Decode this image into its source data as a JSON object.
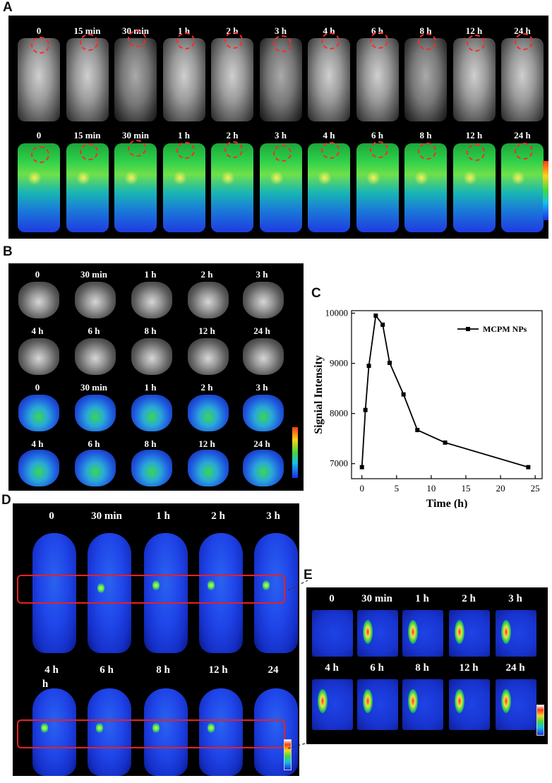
{
  "panels": {
    "A": {
      "letter": "A",
      "time_labels": [
        "0",
        "15 min",
        "30 min",
        "1 h",
        "2 h",
        "3 h",
        "4 h",
        "6 h",
        "8 h",
        "12 h",
        "24 h"
      ]
    },
    "B": {
      "letter": "B",
      "row1_labels": [
        "0",
        "30 min",
        "1 h",
        "2 h",
        "3 h"
      ],
      "row2_labels": [
        "4 h",
        "6 h",
        "8 h",
        "12 h",
        "24 h"
      ]
    },
    "C": {
      "letter": "C"
    },
    "D": {
      "letter": "D",
      "row1_labels": [
        "0",
        "30 min",
        "1 h",
        "2 h",
        "3 h"
      ],
      "row2_labels": [
        "4 h",
        "6 h",
        "8 h",
        "12 h",
        "24"
      ],
      "extra_label": "h"
    },
    "E": {
      "letter": "E",
      "row1_labels": [
        "0",
        "30 min",
        "1 h",
        "2 h",
        "3 h"
      ],
      "row2_labels": [
        "4 h",
        "6 h",
        "8 h",
        "12 h",
        "24 h"
      ]
    }
  },
  "chart_data": {
    "type": "line",
    "xlabel": "Time (h)",
    "ylabel": "Signial Intensity",
    "xlim": [
      -1.5,
      26
    ],
    "ylim": [
      6700,
      10050
    ],
    "xticks": [
      0,
      5,
      10,
      15,
      20,
      25
    ],
    "yticks": [
      7000,
      8000,
      9000,
      10000
    ],
    "legend_position": "top-right",
    "series": [
      {
        "name": "MCPM NPs",
        "marker": "square",
        "color": "#000000",
        "x": [
          0,
          0.5,
          1,
          2,
          3,
          4,
          6,
          8,
          12,
          24
        ],
        "y": [
          6930,
          8070,
          8950,
          9950,
          9770,
          9010,
          8380,
          7670,
          7420,
          6930
        ]
      }
    ]
  }
}
